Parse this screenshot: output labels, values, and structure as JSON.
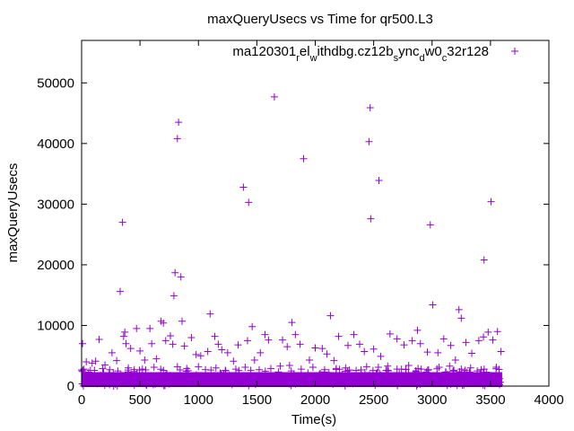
{
  "chart_data": {
    "type": "scatter",
    "title": "maxQueryUsecs vs Time for qr500.L3",
    "xlabel": "Time(s)",
    "ylabel": "maxQueryUsecs",
    "xlim": [
      0,
      4000
    ],
    "ylim": [
      0,
      57000
    ],
    "xticks": [
      "0",
      "500",
      "1000",
      "1500",
      "2000",
      "2500",
      "3000",
      "3500",
      "4000"
    ],
    "yticks": [
      "0",
      "10000",
      "20000",
      "30000",
      "40000",
      "50000"
    ],
    "xtick_values": [
      0,
      500,
      1000,
      1500,
      2000,
      2500,
      3000,
      3500,
      4000
    ],
    "ytick_values": [
      0,
      10000,
      20000,
      30000,
      40000,
      50000
    ],
    "grid": false,
    "legend_placement": "top-right",
    "series": [
      {
        "name": "ma120301_rel_withdbg.cz12b_sync_dw0_c32r128",
        "legend_parts": [
          {
            "t": "ma120301",
            "sub": false
          },
          {
            "t": "r",
            "sub": true
          },
          {
            "t": "el",
            "sub": false
          },
          {
            "t": "w",
            "sub": true
          },
          {
            "t": "ithdbg.cz12b",
            "sub": false
          },
          {
            "t": "s",
            "sub": true
          },
          {
            "t": "ync",
            "sub": false
          },
          {
            "t": "d",
            "sub": true
          },
          {
            "t": "w0",
            "sub": false
          },
          {
            "t": "c",
            "sub": true
          },
          {
            "t": "32r128",
            "sub": false
          }
        ],
        "color": "#9400d3",
        "dense_band": {
          "t_range": [
            0,
            3600
          ],
          "v_range": [
            0,
            2300
          ]
        },
        "points": [
          [
            8,
            7000
          ],
          [
            150,
            7700
          ],
          [
            330,
            15600
          ],
          [
            350,
            27000
          ],
          [
            370,
            8900
          ],
          [
            470,
            9500
          ],
          [
            585,
            9500
          ],
          [
            680,
            10700
          ],
          [
            700,
            10400
          ],
          [
            790,
            14900
          ],
          [
            800,
            18700
          ],
          [
            820,
            40800
          ],
          [
            830,
            43500
          ],
          [
            850,
            18000
          ],
          [
            860,
            10700
          ],
          [
            1100,
            11900
          ],
          [
            1140,
            8200
          ],
          [
            1385,
            32800
          ],
          [
            1430,
            30300
          ],
          [
            1460,
            9800
          ],
          [
            1650,
            47700
          ],
          [
            1800,
            10500
          ],
          [
            1900,
            37500
          ],
          [
            2130,
            11600
          ],
          [
            2460,
            40300
          ],
          [
            2470,
            45900
          ],
          [
            2475,
            27600
          ],
          [
            2545,
            33900
          ],
          [
            2875,
            9200
          ],
          [
            2985,
            26600
          ],
          [
            3005,
            13400
          ],
          [
            3230,
            12600
          ],
          [
            3250,
            11200
          ],
          [
            3445,
            20800
          ],
          [
            3505,
            30400
          ],
          [
            3480,
            8900
          ],
          [
            3560,
            9000
          ],
          [
            40,
            4000
          ],
          [
            90,
            3800
          ],
          [
            120,
            4100
          ],
          [
            200,
            3500
          ],
          [
            260,
            5500
          ],
          [
            300,
            4200
          ],
          [
            360,
            8200
          ],
          [
            380,
            7000
          ],
          [
            420,
            6200
          ],
          [
            500,
            5800
          ],
          [
            540,
            4300
          ],
          [
            600,
            7000
          ],
          [
            640,
            4500
          ],
          [
            720,
            7500
          ],
          [
            760,
            8300
          ],
          [
            780,
            6900
          ],
          [
            880,
            6600
          ],
          [
            940,
            8000
          ],
          [
            980,
            5200
          ],
          [
            1020,
            5000
          ],
          [
            1080,
            5700
          ],
          [
            1170,
            6900
          ],
          [
            1200,
            6000
          ],
          [
            1250,
            5500
          ],
          [
            1300,
            4100
          ],
          [
            1340,
            6800
          ],
          [
            1420,
            7500
          ],
          [
            1480,
            4300
          ],
          [
            1530,
            5500
          ],
          [
            1570,
            8500
          ],
          [
            1600,
            7600
          ],
          [
            1720,
            7600
          ],
          [
            1760,
            6500
          ],
          [
            1830,
            8500
          ],
          [
            1870,
            6900
          ],
          [
            1950,
            4300
          ],
          [
            2000,
            6300
          ],
          [
            2060,
            6200
          ],
          [
            2100,
            5300
          ],
          [
            2160,
            4200
          ],
          [
            2200,
            8200
          ],
          [
            2280,
            6700
          ],
          [
            2330,
            8500
          ],
          [
            2380,
            6900
          ],
          [
            2420,
            5700
          ],
          [
            2500,
            6100
          ],
          [
            2560,
            4900
          ],
          [
            2640,
            8600
          ],
          [
            2700,
            7800
          ],
          [
            2760,
            6800
          ],
          [
            2830,
            7500
          ],
          [
            2900,
            7000
          ],
          [
            2960,
            5600
          ],
          [
            3050,
            5500
          ],
          [
            3100,
            7800
          ],
          [
            3160,
            6700
          ],
          [
            3200,
            4300
          ],
          [
            3290,
            7200
          ],
          [
            3340,
            5400
          ],
          [
            3400,
            7500
          ],
          [
            3440,
            8100
          ],
          [
            3520,
            7600
          ],
          [
            3590,
            5700
          ],
          [
            20,
            2800
          ],
          [
            60,
            2300
          ],
          [
            110,
            2600
          ],
          [
            180,
            2900
          ],
          [
            240,
            2700
          ],
          [
            310,
            2500
          ],
          [
            400,
            3000
          ],
          [
            450,
            2400
          ],
          [
            520,
            2800
          ],
          [
            620,
            3100
          ],
          [
            700,
            2600
          ],
          [
            820,
            3200
          ],
          [
            900,
            2900
          ],
          [
            1000,
            3200
          ],
          [
            1060,
            2700
          ],
          [
            1150,
            3000
          ],
          [
            1230,
            2600
          ],
          [
            1320,
            2800
          ],
          [
            1400,
            3100
          ],
          [
            1520,
            2700
          ],
          [
            1620,
            2900
          ],
          [
            1700,
            3300
          ],
          [
            1780,
            3400
          ],
          [
            1880,
            2800
          ],
          [
            1980,
            3100
          ],
          [
            2080,
            2700
          ],
          [
            2180,
            2900
          ],
          [
            2260,
            3000
          ],
          [
            2350,
            2600
          ],
          [
            2440,
            3200
          ],
          [
            2540,
            3100
          ],
          [
            2620,
            3300
          ],
          [
            2700,
            2800
          ],
          [
            2800,
            3400
          ],
          [
            2880,
            2900
          ],
          [
            2970,
            2700
          ],
          [
            3060,
            3100
          ],
          [
            3150,
            3300
          ],
          [
            3250,
            2800
          ],
          [
            3330,
            3000
          ],
          [
            3420,
            2700
          ],
          [
            3550,
            3100
          ]
        ]
      }
    ]
  }
}
